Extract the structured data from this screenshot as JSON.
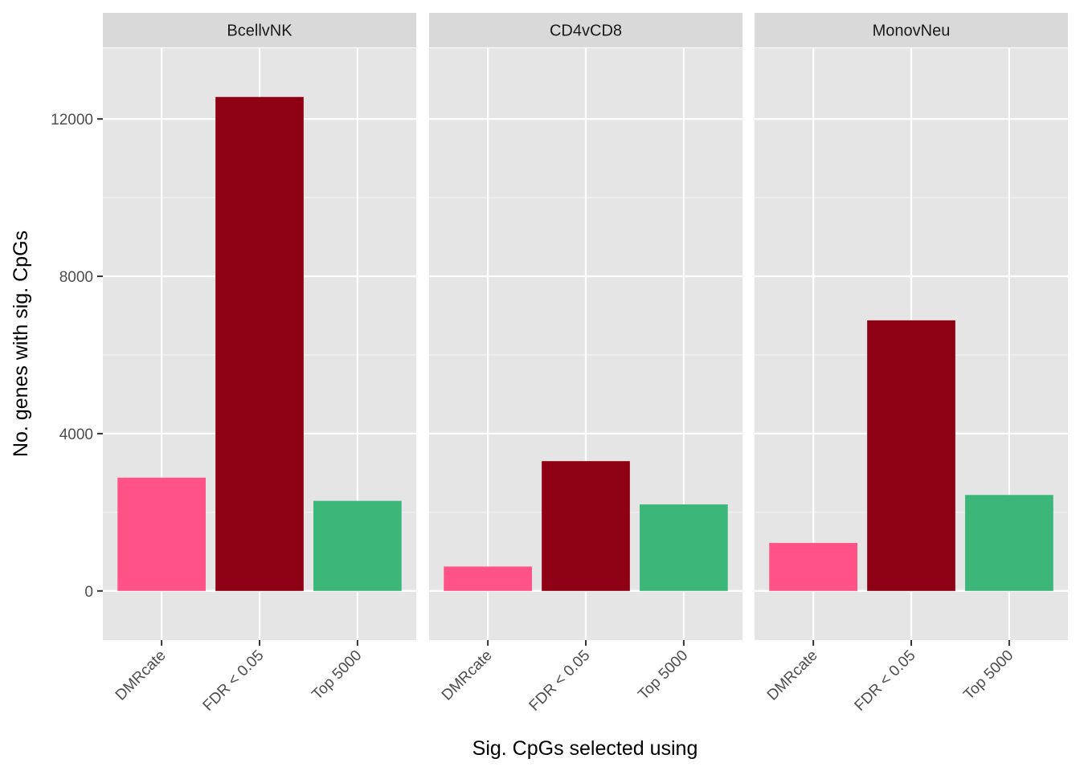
{
  "chart_data": {
    "type": "bar",
    "xlabel": "Sig. CpGs selected using",
    "ylabel": "No. genes with sig. CpGs",
    "categories": [
      "DMRcate",
      "FDR < 0.05",
      "Top 5000"
    ],
    "category_colors": [
      "#FF5286",
      "#8E0014",
      "#3DB67A"
    ],
    "ylim": [
      -1250,
      13800
    ],
    "y_ticks": [
      0,
      4000,
      8000,
      12000
    ],
    "y_tick_labels": [
      "0",
      "4000",
      "8000",
      "12000"
    ],
    "y_minor_ticks": [
      2000,
      6000,
      10000
    ],
    "grid": true,
    "legend": "none",
    "panel_background": "#E5E5E5",
    "strip_background": "#D9D9D9",
    "facets": [
      {
        "name": "BcellvNK",
        "values": [
          2880,
          12560,
          2290
        ]
      },
      {
        "name": "CD4vCD8",
        "values": [
          620,
          3300,
          2200
        ]
      },
      {
        "name": "MonovNeu",
        "values": [
          1220,
          6880,
          2440
        ]
      }
    ]
  }
}
